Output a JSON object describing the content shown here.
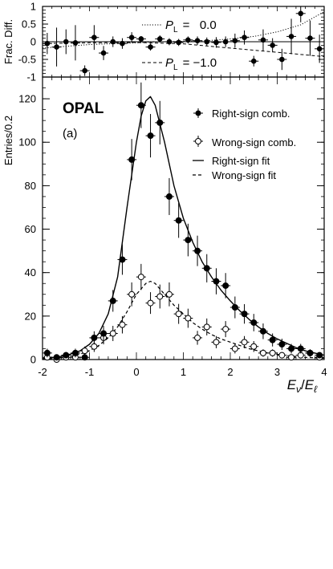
{
  "chart_data": [
    {
      "type": "scatter",
      "panel": "top",
      "ylabel": "Frac. Diff.",
      "xlim": [
        -2,
        4
      ],
      "ylim": [
        -1,
        1
      ],
      "yticks": [
        -1,
        -0.5,
        0,
        0.5,
        1
      ],
      "ytick_labels": [
        "-1",
        "-0.5",
        "0",
        "0.5",
        "1"
      ],
      "series": [
        {
          "kind": "points",
          "x": [
            -1.9,
            -1.7,
            -1.5,
            -1.3,
            -1.1,
            -0.9,
            -0.7,
            -0.5,
            -0.3,
            -0.1,
            0.1,
            0.3,
            0.5,
            0.7,
            0.9,
            1.1,
            1.3,
            1.5,
            1.7,
            1.9,
            2.1,
            2.3,
            2.5,
            2.7,
            2.9,
            3.1,
            3.3,
            3.5,
            3.7,
            3.9
          ],
          "y": [
            -0.05,
            -0.15,
            0.0,
            -0.03,
            -0.82,
            0.12,
            -0.32,
            0.0,
            -0.05,
            0.12,
            0.08,
            -0.15,
            0.08,
            0.0,
            -0.02,
            0.05,
            0.03,
            0.0,
            -0.02,
            0.0,
            0.03,
            0.12,
            -0.55,
            0.05,
            -0.1,
            -0.5,
            0.15,
            0.8,
            0.1,
            -0.2
          ],
          "yerr": [
            0.3,
            0.55,
            0.35,
            0.5,
            0.15,
            0.35,
            0.2,
            0.15,
            0.15,
            0.15,
            0.08,
            0.1,
            0.1,
            0.1,
            0.1,
            0.1,
            0.12,
            0.12,
            0.15,
            0.15,
            0.2,
            0.2,
            0.15,
            0.3,
            0.2,
            0.3,
            0.5,
            0.25,
            0.5,
            0.4
          ]
        },
        {
          "name": "P_L = 0.0",
          "kind": "dotted",
          "x": [
            -2.0,
            -1.0,
            0.0,
            0.5,
            1.0,
            1.5,
            2.0,
            2.5,
            3.0,
            3.5,
            4.0
          ],
          "y": [
            -0.18,
            -0.08,
            -0.03,
            0.0,
            0.01,
            0.03,
            0.08,
            0.15,
            0.28,
            0.48,
            0.85
          ]
        },
        {
          "name": "P_L = -1.0",
          "kind": "dashed",
          "x": [
            -2.0,
            -1.0,
            0.0,
            1.0,
            2.0,
            3.0,
            4.0
          ],
          "y": [
            -0.05,
            -0.03,
            -0.02,
            -0.06,
            -0.18,
            -0.3,
            -0.42
          ]
        }
      ],
      "legend": {
        "p1": {
          "label": "P",
          "sub": "L",
          "value": "=   0.0"
        },
        "p2": {
          "label": "P",
          "sub": "L",
          "value": "= −1.0"
        }
      }
    },
    {
      "type": "scatter",
      "panel": "main",
      "ylabel": "Entries/0.2",
      "xlabel": {
        "num": "E",
        "num_sub": "ν",
        "slash": "/",
        "den": "E",
        "den_sub": "ℓ"
      },
      "xlim": [
        -2,
        4
      ],
      "ylim": [
        0,
        130
      ],
      "xticks": [
        -2,
        -1,
        0,
        1,
        2,
        3,
        4
      ],
      "xtick_labels": [
        "-2",
        "-1",
        "0",
        "1",
        "2",
        "3",
        "4"
      ],
      "yticks": [
        0,
        20,
        40,
        60,
        80,
        100,
        120
      ],
      "ytick_labels": [
        "0",
        "20",
        "40",
        "60",
        "80",
        "100",
        "120"
      ],
      "experiment_label": "OPAL",
      "panel_label": "(a)",
      "series": [
        {
          "name": "Right-sign comb.",
          "kind": "points-filled",
          "x": [
            -1.9,
            -1.7,
            -1.5,
            -1.3,
            -1.1,
            -0.9,
            -0.7,
            -0.5,
            -0.3,
            -0.1,
            0.1,
            0.3,
            0.5,
            0.7,
            0.9,
            1.1,
            1.3,
            1.5,
            1.7,
            1.9,
            2.1,
            2.3,
            2.5,
            2.7,
            2.9,
            3.1,
            3.3,
            3.5,
            3.7,
            3.9
          ],
          "y": [
            3,
            1,
            2,
            3,
            1,
            10,
            12,
            27,
            46,
            92,
            117,
            103,
            109,
            75,
            64,
            55,
            50,
            42,
            36,
            34,
            24,
            21,
            17,
            13,
            9,
            7,
            5,
            5,
            3,
            2
          ],
          "yerr": [
            2,
            1,
            1.5,
            2,
            1,
            3,
            3.5,
            5,
            7,
            9.5,
            10.5,
            10,
            10,
            8.5,
            8,
            7.5,
            7,
            6.5,
            6,
            5.8,
            5,
            4.5,
            4,
            3.6,
            3,
            2.6,
            2.2,
            2.2,
            1.7,
            1.4
          ]
        },
        {
          "name": "Wrong-sign comb.",
          "kind": "points-open",
          "x": [
            -1.9,
            -1.7,
            -1.5,
            -1.3,
            -1.1,
            -0.9,
            -0.7,
            -0.5,
            -0.3,
            -0.1,
            0.1,
            0.3,
            0.5,
            0.7,
            0.9,
            1.1,
            1.3,
            1.5,
            1.7,
            1.9,
            2.1,
            2.3,
            2.5,
            2.7,
            2.9,
            3.1,
            3.3,
            3.5,
            3.7,
            3.9
          ],
          "y": [
            1,
            0,
            1,
            1,
            4,
            6,
            10,
            12,
            16,
            30,
            38,
            26,
            29,
            30,
            21,
            19,
            10,
            15,
            8,
            14,
            5,
            8,
            6,
            3,
            3,
            2,
            1,
            2,
            3,
            1
          ],
          "yerr": [
            1,
            0.5,
            1,
            1,
            2,
            2.5,
            3,
            3.5,
            4,
            5.5,
            6,
            5,
            5.5,
            5.5,
            4.6,
            4.4,
            3.2,
            3.9,
            2.8,
            3.7,
            2.2,
            2.8,
            2.5,
            1.7,
            1.7,
            1.4,
            1,
            1.4,
            1.7,
            1
          ]
        },
        {
          "name": "Right-sign fit",
          "kind": "solid",
          "x": [
            -2.0,
            -1.8,
            -1.6,
            -1.4,
            -1.2,
            -1.0,
            -0.8,
            -0.6,
            -0.4,
            -0.2,
            0.0,
            0.1,
            0.2,
            0.3,
            0.4,
            0.6,
            0.8,
            1.0,
            1.2,
            1.4,
            1.6,
            1.8,
            2.0,
            2.2,
            2.4,
            2.6,
            2.8,
            3.0,
            3.2,
            3.4,
            3.6,
            3.8,
            4.0
          ],
          "y": [
            0.5,
            0.8,
            1.5,
            2.5,
            4,
            7,
            12,
            21,
            38,
            70,
            100,
            112,
            119,
            121,
            117,
            100,
            80,
            65,
            54,
            45,
            38,
            32,
            27,
            22.5,
            18.5,
            15,
            12,
            9.5,
            7.5,
            5.5,
            4,
            3,
            2
          ]
        },
        {
          "name": "Wrong-sign fit",
          "kind": "dashed",
          "x": [
            -2.0,
            -1.8,
            -1.6,
            -1.4,
            -1.2,
            -1.0,
            -0.8,
            -0.6,
            -0.4,
            -0.2,
            0.0,
            0.2,
            0.3,
            0.4,
            0.6,
            0.8,
            1.0,
            1.2,
            1.4,
            1.6,
            1.8,
            2.0,
            2.2,
            2.4,
            2.6,
            2.8,
            3.0,
            3.2,
            3.4,
            3.6,
            3.8,
            4.0
          ],
          "y": [
            0.2,
            0.4,
            0.8,
            1.5,
            2.5,
            4,
            6.5,
            10,
            15,
            22,
            30,
            35,
            36,
            35,
            30,
            25,
            21,
            17,
            14,
            11.5,
            9.5,
            8,
            6.5,
            5,
            4,
            3,
            2.4,
            1.8,
            1.4,
            1,
            0.8,
            0.6
          ]
        }
      ],
      "legend_placement": "top-right"
    }
  ]
}
